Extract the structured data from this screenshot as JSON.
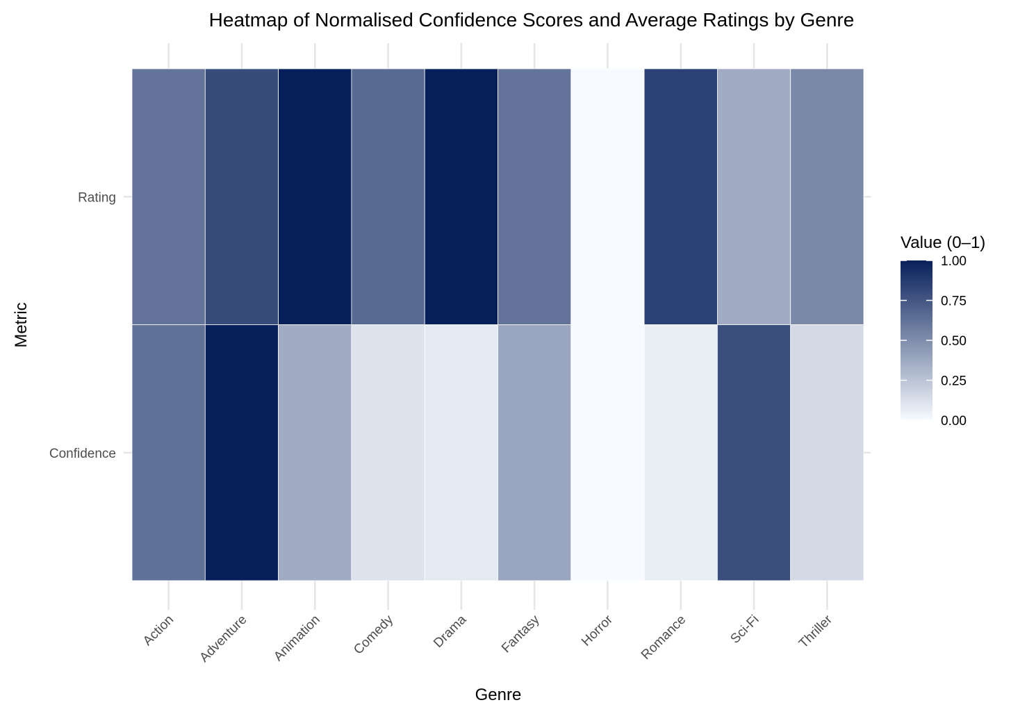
{
  "chart_data": {
    "type": "heatmap",
    "title": "Heatmap of Normalised Confidence Scores and Average Ratings by Genre",
    "xlabel": "Genre",
    "ylabel": "Metric",
    "x_categories": [
      "Action",
      "Adventure",
      "Animation",
      "Comedy",
      "Drama",
      "Fantasy",
      "Horror",
      "Romance",
      "Sci-Fi",
      "Thriller"
    ],
    "y_categories": [
      "Confidence",
      "Rating"
    ],
    "values": {
      "Rating": [
        0.62,
        0.8,
        1.0,
        0.66,
        1.0,
        0.62,
        0.0,
        0.85,
        0.36,
        0.52
      ],
      "Confidence": [
        0.63,
        1.0,
        0.36,
        0.11,
        0.08,
        0.39,
        0.0,
        0.06,
        0.79,
        0.15
      ]
    },
    "legend": {
      "title": "Value (0–1)",
      "ticks": [
        "0.00",
        "0.25",
        "0.50",
        "0.75",
        "1.00"
      ],
      "placement": "right"
    },
    "value_range": [
      0,
      1
    ],
    "colors": {
      "low": "#f7fbff",
      "high": "#08205a"
    },
    "grid": true
  }
}
